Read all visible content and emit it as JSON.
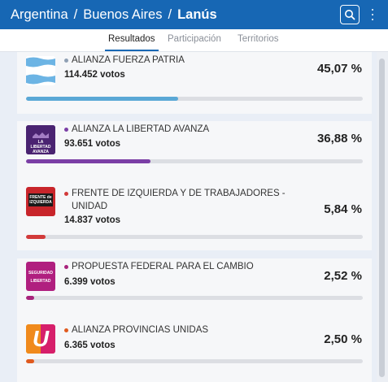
{
  "breadcrumb": {
    "country": "Argentina",
    "province": "Buenos Aires",
    "district": "Lanús",
    "separator": "/"
  },
  "header": {
    "search_icon": "search-icon",
    "menu_icon": "more-vertical-icon",
    "accent": "#1767b4"
  },
  "tabs": [
    {
      "label": "Resultados",
      "active": true
    },
    {
      "label": "Participación",
      "active": false
    },
    {
      "label": "Territorios",
      "active": false
    }
  ],
  "results": [
    {
      "name": "ALIANZA FUERZA PATRIA",
      "votes": "114.452 votos",
      "percent": "45,07 %",
      "share": 45.07,
      "color": "#5aa8d6",
      "logo": "argentina-flag-logo"
    },
    {
      "name": "ALIANZA LA LIBERTAD AVANZA",
      "votes": "93.651 votos",
      "percent": "36,88 %",
      "share": 36.88,
      "color": "#7b3fa6",
      "logo": "la-libertad-avanza-logo",
      "logo_text": "LA LIBERTAD AVANZA"
    },
    {
      "name": "FRENTE DE IZQUIERDA Y DE TRABAJADORES - UNIDAD",
      "votes": "14.837 votos",
      "percent": "5,84 %",
      "share": 5.84,
      "color": "#d23a3a",
      "logo": "frente-de-izquierda-logo",
      "logo_text": "FRENTE de IZQUIERDA"
    },
    {
      "name": "PROPUESTA FEDERAL PARA EL CAMBIO",
      "votes": "6.399 votos",
      "percent": "2,52 %",
      "share": 2.52,
      "color": "#a8237c",
      "logo": "seguridad-libertad-logo",
      "logo_text": "SEGURIDAD LIBERTAD"
    },
    {
      "name": "ALIANZA PROVINCIAS UNIDAS",
      "votes": "6.365 votos",
      "percent": "2,50 %",
      "share": 2.5,
      "color": "#e05a1e",
      "logo": "provincias-unidas-logo",
      "logo_text": "U"
    }
  ]
}
